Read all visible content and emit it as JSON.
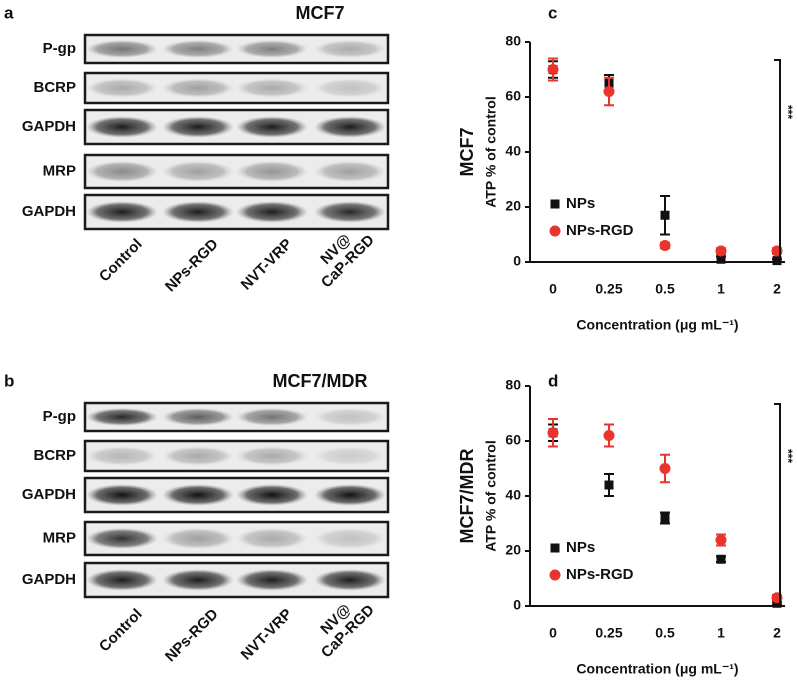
{
  "panel_labels": [
    "a",
    "b",
    "c",
    "d"
  ],
  "blots": [
    {
      "title": "MCF7",
      "rows": [
        "P-gp",
        "BCRP",
        "GAPDH",
        "MRP",
        "GAPDH"
      ],
      "lanes": [
        [
          "Control"
        ],
        [
          "NPs-RGD"
        ],
        [
          "NVT-VRP"
        ],
        [
          "NV@",
          "CaP-RGD"
        ]
      ]
    },
    {
      "title": "MCF7/MDR",
      "rows": [
        "P-gp",
        "BCRP",
        "GAPDH",
        "MRP",
        "GAPDH"
      ],
      "lanes": [
        [
          "Control"
        ],
        [
          "NPs-RGD"
        ],
        [
          "NVT-VRP"
        ],
        [
          "NV@",
          "CaP-RGD"
        ]
      ]
    }
  ],
  "chart_data": [
    {
      "type": "scatter",
      "side_label": "MCF7",
      "y_label": "ATP % of control",
      "x_label": "Concentration (μg mL⁻¹)",
      "categories": [
        "0",
        "0.25",
        "0.5",
        "1",
        "2"
      ],
      "ylim": [
        0,
        80
      ],
      "yticks": [
        0,
        20,
        40,
        60,
        80
      ],
      "legend": "lower left",
      "annotation": "***",
      "series": [
        {
          "name": "NPs",
          "color": "#111111",
          "marker": "square",
          "values": [
            70,
            65,
            17,
            1,
            0.5
          ],
          "errors": [
            3,
            3,
            7,
            1,
            0.5
          ]
        },
        {
          "name": "NPs-RGD",
          "color": "#e8342c",
          "marker": "circle",
          "values": [
            70,
            62,
            6,
            4,
            4
          ],
          "errors": [
            4,
            5,
            1,
            1,
            1
          ]
        }
      ]
    },
    {
      "type": "scatter",
      "side_label": "MCF7/MDR",
      "y_label": "ATP % of control",
      "x_label": "Concentration (μg mL⁻¹)",
      "categories": [
        "0",
        "0.25",
        "0.5",
        "1",
        "2"
      ],
      "ylim": [
        0,
        80
      ],
      "yticks": [
        0,
        20,
        40,
        60,
        80
      ],
      "legend": "lower left",
      "annotation": "***",
      "series": [
        {
          "name": "NPs",
          "color": "#111111",
          "marker": "square",
          "values": [
            63,
            44,
            32,
            17,
            1
          ],
          "errors": [
            3,
            4,
            2,
            1,
            0.5
          ]
        },
        {
          "name": "NPs-RGD",
          "color": "#e8342c",
          "marker": "circle",
          "values": [
            63,
            62,
            50,
            24,
            3
          ],
          "errors": [
            5,
            4,
            5,
            2,
            1
          ]
        }
      ]
    }
  ]
}
